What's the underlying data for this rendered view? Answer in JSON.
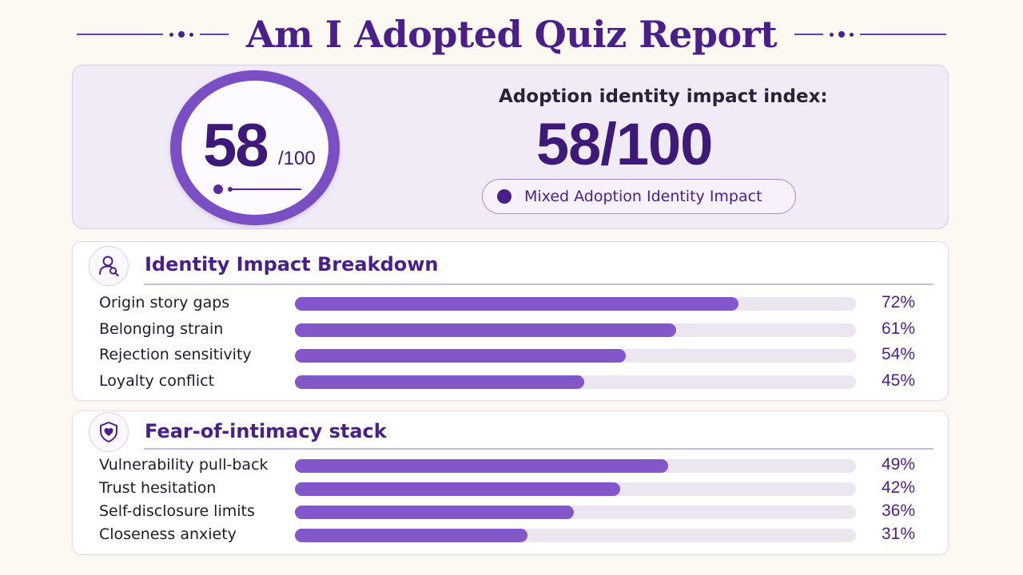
{
  "title": "Am I Adopted Quiz Report",
  "score": {
    "ring_value": "58",
    "ring_denominator": "/100",
    "index_label": "Adoption identity impact index:",
    "index_value": "58/100",
    "badge": "Mixed Adoption Identity Impact"
  },
  "sections": [
    {
      "title": "Identity Impact Breakdown",
      "icon": "person-search-icon",
      "rows": [
        {
          "label": "Origin story gaps",
          "pct": "72%",
          "fill": 0.79
        },
        {
          "label": "Belonging strain",
          "pct": "61%",
          "fill": 0.68
        },
        {
          "label": "Rejection sensitivity",
          "pct": "54%",
          "fill": 0.59
        },
        {
          "label": "Loyalty conflict",
          "pct": "45%",
          "fill": 0.515
        }
      ]
    },
    {
      "title": "Fear-of-intimacy stack",
      "icon": "shield-heart-icon",
      "rows": [
        {
          "label": "Vulnerability pull-back",
          "pct": "49%",
          "fill": 0.665
        },
        {
          "label": "Trust hesitation",
          "pct": "42%",
          "fill": 0.58
        },
        {
          "label": "Self-disclosure limits",
          "pct": "36%",
          "fill": 0.497
        },
        {
          "label": "Closeness anxiety",
          "pct": "31%",
          "fill": 0.415
        }
      ]
    }
  ],
  "colors": {
    "accent": "#4b1f8a",
    "bar_fill": "#8357c9",
    "bar_track": "#ebe6ef",
    "background": "#fcf8f2"
  }
}
